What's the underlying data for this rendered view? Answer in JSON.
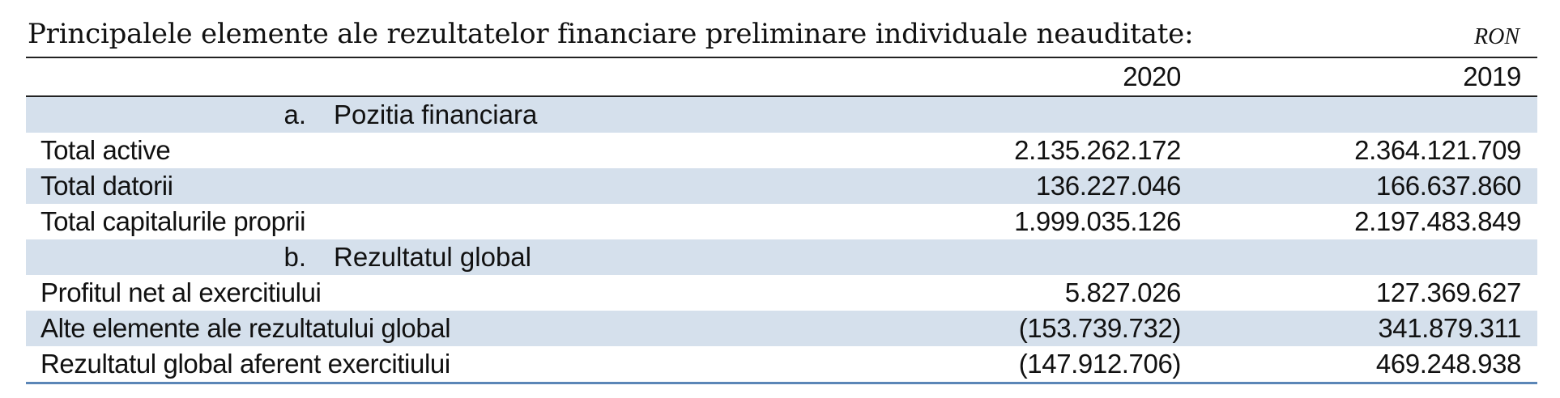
{
  "document": {
    "title": "Principalele elemente ale rezultatelor financiare preliminare individuale neauditate:",
    "unit": "RON"
  },
  "table": {
    "columns": [
      "",
      "2020",
      "2019"
    ],
    "sections": [
      {
        "letter": "a.",
        "title": "Pozitia financiara",
        "rows": [
          {
            "label": "Total active",
            "y2020": "2.135.262.172",
            "y2019": "2.364.121.709"
          },
          {
            "label": "Total datorii",
            "y2020": "136.227.046",
            "y2019": "166.637.860"
          },
          {
            "label": "Total capitalurile proprii",
            "y2020": "1.999.035.126",
            "y2019": "2.197.483.849"
          }
        ]
      },
      {
        "letter": "b.",
        "title": "Rezultatul global",
        "rows": [
          {
            "label": "Profitul net al exercitiului",
            "y2020": "5.827.026",
            "y2019": "127.369.627"
          },
          {
            "label": "Alte elemente ale rezultatului global",
            "y2020": "(153.739.732)",
            "y2019": "341.879.311"
          },
          {
            "label": "Rezultatul global aferent exercitiului",
            "y2020": "(147.912.706)",
            "y2019": "469.248.938"
          }
        ]
      }
    ]
  },
  "colors": {
    "row_shade": "#d5e0ec",
    "bottom_rule": "#5b86b7",
    "text": "#111111"
  }
}
